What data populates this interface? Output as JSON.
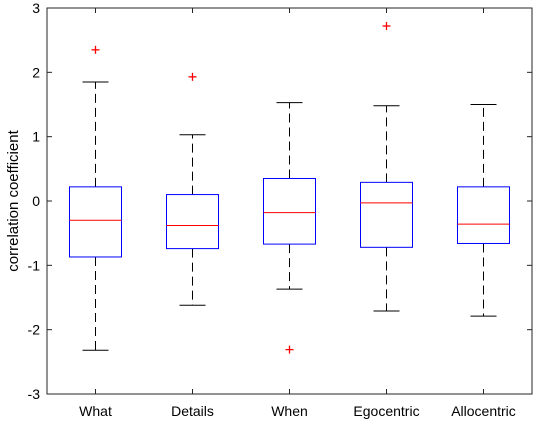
{
  "chart_data": {
    "type": "boxplot",
    "title": "",
    "xlabel": "",
    "ylabel": "correlation coefficient",
    "ylim": [
      -3,
      3
    ],
    "yticks": [
      -3,
      -2,
      -1,
      0,
      1,
      2,
      3
    ],
    "grid": false,
    "categories": [
      "What",
      "Details",
      "When",
      "Egocentric",
      "Allocentric"
    ],
    "boxes": [
      {
        "category": "What",
        "whisker_low": -2.32,
        "q1": -0.87,
        "median": -0.3,
        "q3": 0.22,
        "whisker_high": 1.85,
        "outliers": [
          2.35
        ]
      },
      {
        "category": "Details",
        "whisker_low": -1.62,
        "q1": -0.74,
        "median": -0.38,
        "q3": 0.1,
        "whisker_high": 1.03,
        "outliers": [
          1.93
        ]
      },
      {
        "category": "When",
        "whisker_low": -1.37,
        "q1": -0.67,
        "median": -0.18,
        "q3": 0.35,
        "whisker_high": 1.53,
        "outliers": [
          -2.31
        ]
      },
      {
        "category": "Egocentric",
        "whisker_low": -1.71,
        "q1": -0.72,
        "median": -0.03,
        "q3": 0.29,
        "whisker_high": 1.48,
        "outliers": [
          2.72
        ]
      },
      {
        "category": "Allocentric",
        "whisker_low": -1.79,
        "q1": -0.66,
        "median": -0.36,
        "q3": 0.22,
        "whisker_high": 1.5,
        "outliers": []
      }
    ],
    "colors": {
      "box": "#0000ff",
      "median": "#ff0000",
      "whisker": "#000000",
      "outlier": "#ff0000",
      "axes": "#262626"
    }
  }
}
